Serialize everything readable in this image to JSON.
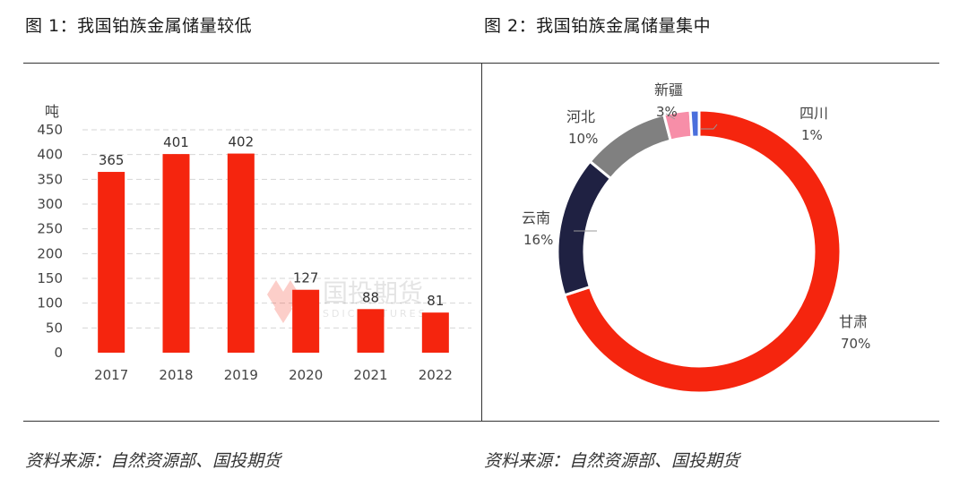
{
  "figure1": {
    "title": "图 1：我国铂族金属储量较低",
    "source": "资料来源：自然资源部、国投期货"
  },
  "figure2": {
    "title": "图 2：我国铂族金属储量集中",
    "source": "资料来源：自然资源部、国投期货"
  },
  "watermark": {
    "cn": "国投期货",
    "en": "SDIC FUTURES"
  },
  "colors": {
    "bar": "#f5250e",
    "grid": "#d6d6d6",
    "axis_text": "#444444"
  },
  "chart_data": [
    {
      "type": "bar",
      "title": "",
      "ylabel": "吨",
      "categories": [
        "2017",
        "2018",
        "2019",
        "2020",
        "2021",
        "2022"
      ],
      "values": [
        365,
        401,
        402,
        127,
        88,
        81
      ],
      "ylim": [
        0,
        450
      ],
      "yticks": [
        0,
        50,
        100,
        150,
        200,
        250,
        300,
        350,
        400,
        450
      ],
      "grid": true
    },
    {
      "type": "pie",
      "subtype": "donut",
      "title": "",
      "slices": [
        {
          "name": "甘肃",
          "label": "70%",
          "value": 70,
          "color": "#f5250e"
        },
        {
          "name": "云南",
          "label": "16%",
          "value": 16,
          "color": "#1f2142"
        },
        {
          "name": "河北",
          "label": "10%",
          "value": 10,
          "color": "#808080"
        },
        {
          "name": "新疆",
          "label": "3%",
          "value": 3,
          "color": "#f78ea8"
        },
        {
          "name": "四川",
          "label": "1%",
          "value": 1,
          "color": "#4a6fdc"
        }
      ]
    }
  ]
}
